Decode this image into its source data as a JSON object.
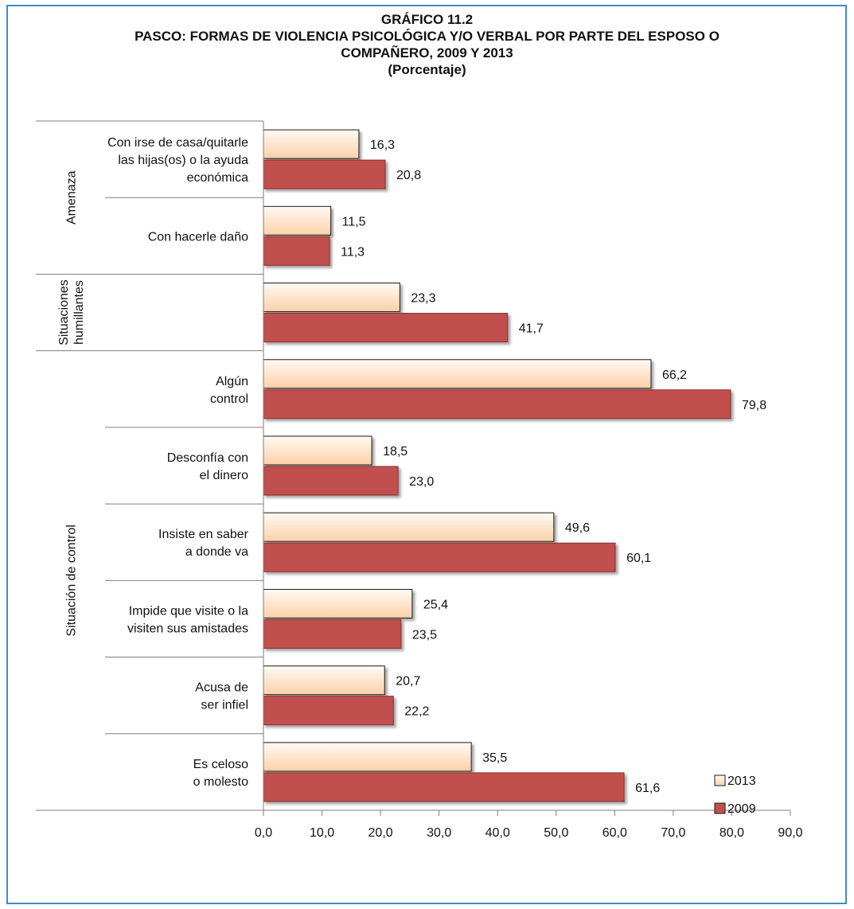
{
  "chart_data": {
    "type": "bar",
    "orientation": "horizontal",
    "title_lines": [
      "GRÁFICO 11.2",
      "PASCO: FORMAS DE VIOLENCIA PSICOLÓGICA Y/O VERBAL POR PARTE DEL ESPOSO O",
      "COMPAÑERO, 2009 Y 2013",
      "(Porcentaje)"
    ],
    "xlim": [
      0,
      90
    ],
    "x_ticks": [
      "0,0",
      "10,0",
      "20,0",
      "30,0",
      "40,0",
      "50,0",
      "60,0",
      "70,0",
      "80,0",
      "90,0"
    ],
    "grid": false,
    "legend_position": "bottom-right",
    "categories": [
      [
        "Con irse de casa/quitarle",
        "las hijas(os) o la ayuda",
        "económica"
      ],
      [
        "Con hacerle daño"
      ],
      [],
      [
        "Algún",
        "control"
      ],
      [
        "Desconfía con",
        "el dinero"
      ],
      [
        "Insiste en saber",
        "a donde va"
      ],
      [
        "Impide que visite  o la",
        "visiten sus amistades"
      ],
      [
        "Acusa de",
        "ser infiel"
      ],
      [
        "Es celoso",
        "o molesto"
      ]
    ],
    "groups": [
      {
        "label_lines": [
          "Amenaza"
        ],
        "from": 0,
        "to": 1
      },
      {
        "label_lines": [
          "Situaciones",
          "humillantes"
        ],
        "from": 2,
        "to": 2
      },
      {
        "label_lines": [
          "Situación de control"
        ],
        "from": 3,
        "to": 8
      }
    ],
    "series": [
      {
        "name": "2013",
        "color": "#fbd0a8",
        "values": [
          16.3,
          11.5,
          23.3,
          66.2,
          18.5,
          49.6,
          25.4,
          20.7,
          35.5
        ],
        "labels": [
          "16,3",
          "11,5",
          "23,3",
          "66,2",
          "18,5",
          "49,6",
          "25,4",
          "20,7",
          "35,5"
        ]
      },
      {
        "name": "2009",
        "color": "#c0504d",
        "values": [
          20.8,
          11.3,
          41.7,
          79.8,
          23.0,
          60.1,
          23.5,
          22.2,
          61.6
        ],
        "labels": [
          "20,8",
          "11,3",
          "41,7",
          "79,8",
          "23,0",
          "60,1",
          "23,5",
          "22,2",
          "61,6"
        ]
      }
    ]
  }
}
